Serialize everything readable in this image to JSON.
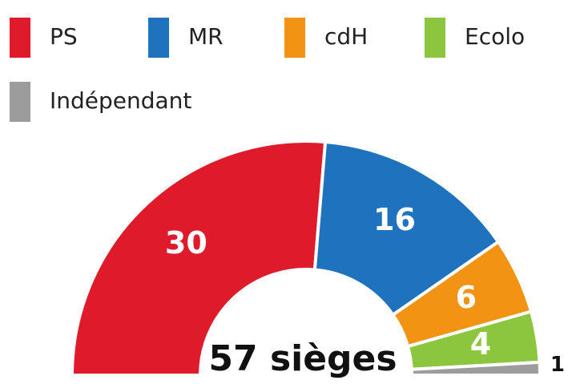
{
  "chart_data": {
    "type": "half-donut",
    "categories": [
      "PS",
      "MR",
      "cdH",
      "Ecolo",
      "Indépendant"
    ],
    "values": [
      30,
      16,
      6,
      4,
      1
    ],
    "colors": [
      "#df1b2b",
      "#1f72bd",
      "#f39314",
      "#8cc63e",
      "#9c9c9c"
    ],
    "center_label": "57 sièges",
    "legend": "top"
  }
}
